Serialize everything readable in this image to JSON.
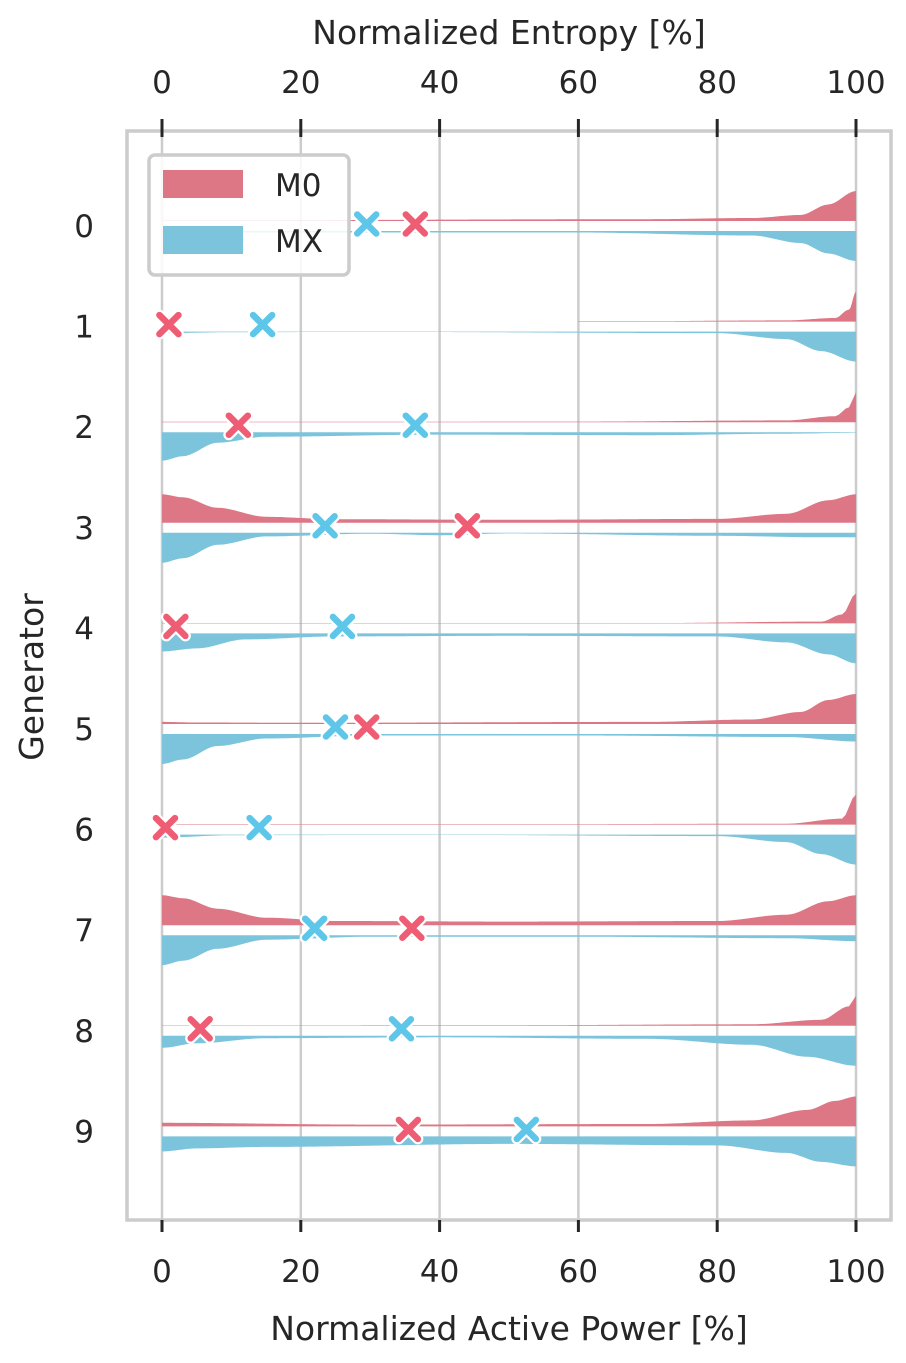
{
  "chart_data": {
    "type": "violin",
    "title": "",
    "xlabel": "Normalized Active Power [%]",
    "xlabel_top": "Normalized Entropy [%]",
    "ylabel": "Generator",
    "xlim": [
      -5,
      105
    ],
    "xticks": [
      0,
      20,
      40,
      60,
      80,
      100
    ],
    "xtick_labels_bottom": [
      "0",
      "20",
      "40",
      "60",
      "80",
      "100"
    ],
    "xtick_labels_top": [
      "0",
      "20",
      "40",
      "60",
      "80",
      "100"
    ],
    "categories": [
      "0",
      "1",
      "2",
      "3",
      "4",
      "5",
      "6",
      "7",
      "8",
      "9"
    ],
    "grid": "vertical",
    "legend": {
      "placement": "top-left",
      "entries": [
        "M0",
        "MX"
      ]
    },
    "colors": {
      "M0": "#dd7785",
      "MX": "#7cc4dc",
      "M0_marker": "#ee5d74",
      "MX_marker": "#5ec6e8"
    },
    "series": [
      {
        "name": "M0",
        "side": "upper",
        "entropy_markers": [
          36.5,
          1,
          11,
          44,
          2,
          29.5,
          0.5,
          36,
          5.5,
          35.5
        ],
        "density_profiles": [
          [
            [
              0,
              0.02
            ],
            [
              70,
              0.06
            ],
            [
              85,
              0.1
            ],
            [
              92,
              0.2
            ],
            [
              96,
              0.55
            ],
            [
              100,
              1
            ]
          ],
          [
            [
              60,
              0
            ],
            [
              90,
              0.04
            ],
            [
              97,
              0.12
            ],
            [
              99,
              0.4
            ],
            [
              100,
              1
            ]
          ],
          [
            [
              0,
              0
            ],
            [
              60,
              0.02
            ],
            [
              90,
              0.06
            ],
            [
              97,
              0.2
            ],
            [
              99,
              0.5
            ],
            [
              100,
              1
            ]
          ],
          [
            [
              0,
              0.95
            ],
            [
              3,
              0.85
            ],
            [
              8,
              0.5
            ],
            [
              15,
              0.2
            ],
            [
              25,
              0.12
            ],
            [
              50,
              0.1
            ],
            [
              80,
              0.13
            ],
            [
              90,
              0.3
            ],
            [
              96,
              0.75
            ],
            [
              100,
              0.95
            ]
          ],
          [
            [
              0,
              0
            ],
            [
              70,
              0.01
            ],
            [
              95,
              0.06
            ],
            [
              98,
              0.3
            ],
            [
              100,
              1
            ]
          ],
          [
            [
              0,
              0.07
            ],
            [
              5,
              0.05
            ],
            [
              20,
              0.04
            ],
            [
              70,
              0.07
            ],
            [
              85,
              0.15
            ],
            [
              92,
              0.4
            ],
            [
              96,
              0.8
            ],
            [
              100,
              1
            ]
          ],
          [
            [
              0,
              0
            ],
            [
              45,
              0.01
            ],
            [
              90,
              0.03
            ],
            [
              98,
              0.2
            ],
            [
              100,
              1
            ]
          ],
          [
            [
              0,
              1
            ],
            [
              3,
              0.9
            ],
            [
              8,
              0.55
            ],
            [
              15,
              0.25
            ],
            [
              25,
              0.14
            ],
            [
              50,
              0.12
            ],
            [
              80,
              0.14
            ],
            [
              90,
              0.35
            ],
            [
              96,
              0.8
            ],
            [
              100,
              1
            ]
          ],
          [
            [
              0,
              0.01
            ],
            [
              50,
              0.02
            ],
            [
              85,
              0.05
            ],
            [
              95,
              0.2
            ],
            [
              99,
              0.65
            ],
            [
              100,
              1
            ]
          ],
          [
            [
              0,
              0.12
            ],
            [
              30,
              0.06
            ],
            [
              70,
              0.08
            ],
            [
              85,
              0.2
            ],
            [
              93,
              0.55
            ],
            [
              97,
              0.85
            ],
            [
              100,
              1
            ]
          ]
        ]
      },
      {
        "name": "MX",
        "side": "lower",
        "entropy_markers": [
          29.5,
          14.5,
          36.5,
          23.5,
          26,
          25,
          14,
          22,
          34.5,
          52.5
        ],
        "density_profiles": [
          [
            [
              0,
              0.05
            ],
            [
              60,
              0.05
            ],
            [
              85,
              0.15
            ],
            [
              92,
              0.4
            ],
            [
              96,
              0.75
            ],
            [
              100,
              1
            ]
          ],
          [
            [
              0,
              0.05
            ],
            [
              10,
              0.02
            ],
            [
              30,
              0.01
            ],
            [
              80,
              0.05
            ],
            [
              90,
              0.25
            ],
            [
              95,
              0.65
            ],
            [
              100,
              1
            ]
          ],
          [
            [
              0,
              0.95
            ],
            [
              3,
              0.8
            ],
            [
              8,
              0.35
            ],
            [
              15,
              0.15
            ],
            [
              40,
              0.08
            ],
            [
              70,
              0.1
            ],
            [
              90,
              0.05
            ],
            [
              100,
              0.02
            ]
          ],
          [
            [
              0,
              1
            ],
            [
              3,
              0.85
            ],
            [
              8,
              0.4
            ],
            [
              15,
              0.12
            ],
            [
              30,
              0.03
            ],
            [
              40,
              0.08
            ],
            [
              50,
              0.02
            ],
            [
              80,
              0.1
            ],
            [
              95,
              0.15
            ],
            [
              100,
              0.15
            ]
          ],
          [
            [
              0,
              0.6
            ],
            [
              5,
              0.5
            ],
            [
              12,
              0.2
            ],
            [
              25,
              0.1
            ],
            [
              50,
              0.08
            ],
            [
              80,
              0.1
            ],
            [
              90,
              0.3
            ],
            [
              96,
              0.7
            ],
            [
              100,
              1
            ]
          ],
          [
            [
              0,
              1
            ],
            [
              3,
              0.85
            ],
            [
              8,
              0.4
            ],
            [
              15,
              0.15
            ],
            [
              30,
              0.05
            ],
            [
              60,
              0.05
            ],
            [
              90,
              0.1
            ],
            [
              100,
              0.25
            ]
          ],
          [
            [
              0,
              0.1
            ],
            [
              10,
              0.02
            ],
            [
              40,
              0.01
            ],
            [
              80,
              0.05
            ],
            [
              90,
              0.25
            ],
            [
              95,
              0.65
            ],
            [
              100,
              1
            ]
          ],
          [
            [
              0,
              1
            ],
            [
              3,
              0.85
            ],
            [
              8,
              0.45
            ],
            [
              15,
              0.15
            ],
            [
              30,
              0.05
            ],
            [
              60,
              0.05
            ],
            [
              90,
              0.1
            ],
            [
              100,
              0.2
            ]
          ],
          [
            [
              0,
              0.4
            ],
            [
              5,
              0.25
            ],
            [
              15,
              0.08
            ],
            [
              40,
              0.05
            ],
            [
              70,
              0.1
            ],
            [
              85,
              0.3
            ],
            [
              93,
              0.7
            ],
            [
              100,
              1
            ]
          ],
          [
            [
              0,
              0.5
            ],
            [
              5,
              0.4
            ],
            [
              15,
              0.35
            ],
            [
              50,
              0.25
            ],
            [
              80,
              0.3
            ],
            [
              90,
              0.55
            ],
            [
              95,
              0.85
            ],
            [
              100,
              1
            ]
          ]
        ]
      }
    ]
  }
}
